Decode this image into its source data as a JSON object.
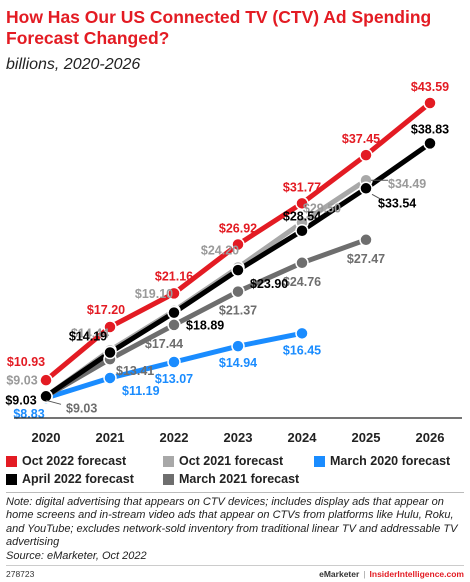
{
  "chart_data": {
    "type": "line",
    "title": "How Has Our US Connected TV (CTV) Ad Spending Forecast Changed?",
    "subtitle": "billions, 2020-2026",
    "x": [
      2020,
      2021,
      2022,
      2023,
      2024,
      2025,
      2026
    ],
    "ylim": [
      8,
      45
    ],
    "grid": false,
    "legend_position": "bottom",
    "series": [
      {
        "name": "March 2020 forecast",
        "color": "#1a8cff",
        "values": [
          8.83,
          11.19,
          13.07,
          14.94,
          16.45,
          null,
          null
        ],
        "labels": [
          "$8.83",
          "$11.19",
          "$13.07",
          "$14.94",
          "$16.45",
          null,
          null
        ]
      },
      {
        "name": "March 2021 forecast",
        "color": "#6e6e6e",
        "values": [
          9.03,
          13.41,
          17.44,
          21.37,
          24.76,
          27.47,
          null
        ],
        "labels": [
          "$9.03",
          "$13.41",
          "$17.44",
          "$21.37",
          "$24.76",
          "$27.47",
          null
        ]
      },
      {
        "name": "Oct 2021 forecast",
        "color": "#a8a8a8",
        "values": [
          9.03,
          14.44,
          19.1,
          24.2,
          29.5,
          34.49,
          null
        ],
        "labels": [
          "$9.03",
          "$14.44",
          "$19.10",
          "$24.20",
          "$29.50",
          "$34.49",
          null
        ]
      },
      {
        "name": "April 2022 forecast",
        "color": "#000000",
        "values": [
          9.03,
          14.19,
          18.89,
          23.9,
          28.54,
          33.54,
          38.83
        ],
        "labels": [
          "$9.03",
          "$14.19",
          "$18.89",
          "$23.90",
          "$28.54",
          "$33.54",
          "$38.83"
        ]
      },
      {
        "name": "Oct 2022 forecast",
        "color": "#e31b23",
        "values": [
          10.93,
          17.2,
          21.16,
          26.92,
          31.77,
          37.45,
          43.59
        ],
        "labels": [
          "$10.93",
          "$17.20",
          "$21.16",
          "$26.92",
          "$31.77",
          "$37.45",
          "$43.59"
        ]
      }
    ]
  },
  "legend": [
    {
      "label": "Oct 2022 forecast",
      "color": "#e31b23"
    },
    {
      "label": "Oct 2021 forecast",
      "color": "#a8a8a8"
    },
    {
      "label": "March 2020 forecast",
      "color": "#1a8cff"
    },
    {
      "label": "April 2022 forecast",
      "color": "#000000"
    },
    {
      "label": "March 2021 forecast",
      "color": "#6e6e6e"
    }
  ],
  "notes": {
    "note": "Note: digital advertising that appears on CTV devices; includes display ads that appear on home screens and in-stream video ads that appear on CTVs from platforms like Hulu, Roku, and YouTube; excludes network-sold inventory from traditional linear TV and addressable TV advertising",
    "source": "Source: eMarketer, Oct 2022"
  },
  "footer": {
    "id": "278723",
    "brand": "eMarketer",
    "separator": "|",
    "site": "InsiderIntelligence.com"
  }
}
